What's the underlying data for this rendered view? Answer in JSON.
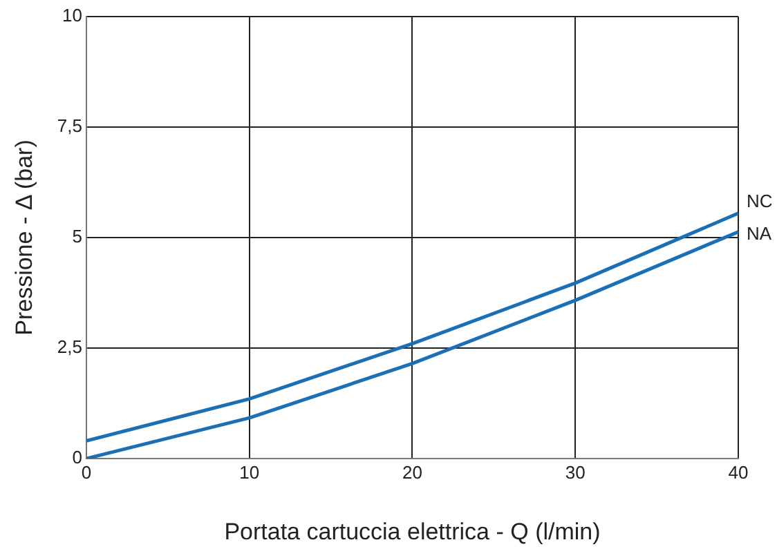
{
  "chart_data": {
    "type": "line",
    "xlabel": "Portata cartuccia elettrica - Q (l/min)",
    "ylabel": "Pressione - Δ (bar)",
    "x": [
      0,
      10,
      20,
      30,
      40
    ],
    "series": [
      {
        "name": "NC",
        "color": "#1a6fb5",
        "values": [
          0.4,
          1.35,
          2.6,
          3.97,
          5.55
        ]
      },
      {
        "name": "NA",
        "color": "#1a6fb5",
        "values": [
          0,
          0.92,
          2.15,
          3.58,
          5.13
        ]
      }
    ],
    "xlim": [
      0,
      40
    ],
    "xticks": [
      0,
      10,
      20,
      30,
      40
    ],
    "ylim": [
      0,
      10
    ],
    "yticks": [
      0,
      {
        "value": 2.5,
        "label": "2,5"
      },
      5,
      {
        "value": 7.5,
        "label": "7,5"
      },
      10
    ],
    "grid": true,
    "legend": false,
    "marker": "none",
    "line_style": "solid"
  }
}
